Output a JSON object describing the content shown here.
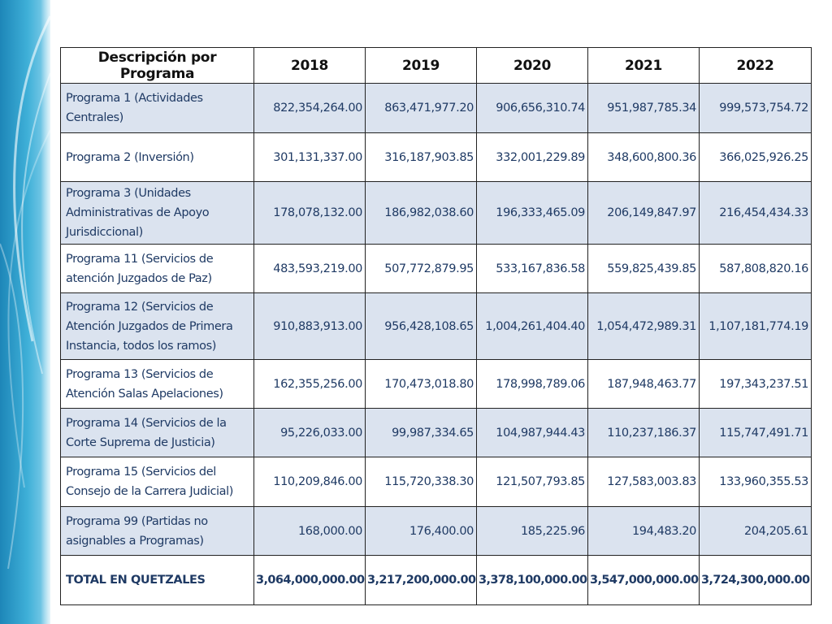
{
  "colors": {
    "header_bg": "#ffffff",
    "row_shade": "#dbe3ef",
    "text": "#1f3a64",
    "deco_blue": "#2fa3cf"
  },
  "table": {
    "headers": [
      "Descripción por Programa",
      "2018",
      "2019",
      "2020",
      "2021",
      "2022"
    ],
    "rows": [
      {
        "desc": "Programa 1 (Actividades Centrales)",
        "values": [
          "822,354,264.00",
          "863,471,977.20",
          "906,656,310.74",
          "951,987,785.34",
          "999,573,754.72"
        ]
      },
      {
        "desc": "Programa 2 (Inversión)",
        "values": [
          "301,131,337.00",
          "316,187,903.85",
          "332,001,229.89",
          "348,600,800.36",
          "366,025,926.25"
        ]
      },
      {
        "desc": "Programa 3 (Unidades Administrativas de Apoyo Jurisdiccional)",
        "values": [
          "178,078,132.00",
          "186,982,038.60",
          "196,333,465.09",
          "206,149,847.97",
          "216,454,434.33"
        ]
      },
      {
        "desc": "Programa 11 (Servicios de atención Juzgados de Paz)",
        "values": [
          "483,593,219.00",
          "507,772,879.95",
          "533,167,836.58",
          "559,825,439.85",
          "587,808,820.16"
        ]
      },
      {
        "desc": "Programa 12 (Servicios de Atención Juzgados de Primera Instancia, todos los ramos)",
        "values": [
          "910,883,913.00",
          "956,428,108.65",
          "1,004,261,404.40",
          "1,054,472,989.31",
          "1,107,181,774.19"
        ]
      },
      {
        "desc": "Programa 13 (Servicios de Atención Salas Apelaciones)",
        "values": [
          "162,355,256.00",
          "170,473,018.80",
          "178,998,789.06",
          "187,948,463.77",
          "197,343,237.51"
        ]
      },
      {
        "desc": "Programa 14 (Servicios de la Corte Suprema de Justicia)",
        "values": [
          "95,226,033.00",
          "99,987,334.65",
          "104,987,944.43",
          "110,237,186.37",
          "115,747,491.71"
        ]
      },
      {
        "desc": "Programa 15 (Servicios del Consejo de la Carrera Judicial)",
        "values": [
          "110,209,846.00",
          "115,720,338.30",
          "121,507,793.85",
          "127,583,003.83",
          "133,960,355.53"
        ]
      },
      {
        "desc": "Programa 99 (Partidas no asignables a Programas)",
        "values": [
          "168,000.00",
          "176,400.00",
          "185,225.96",
          "194,483.20",
          "204,205.61"
        ]
      }
    ],
    "total": {
      "desc": "TOTAL EN QUETZALES",
      "values": [
        "3,064,000,000.00",
        "3,217,200,000.00",
        "3,378,100,000.00",
        "3,547,000,000.00",
        "3,724,300,000.00"
      ]
    }
  }
}
